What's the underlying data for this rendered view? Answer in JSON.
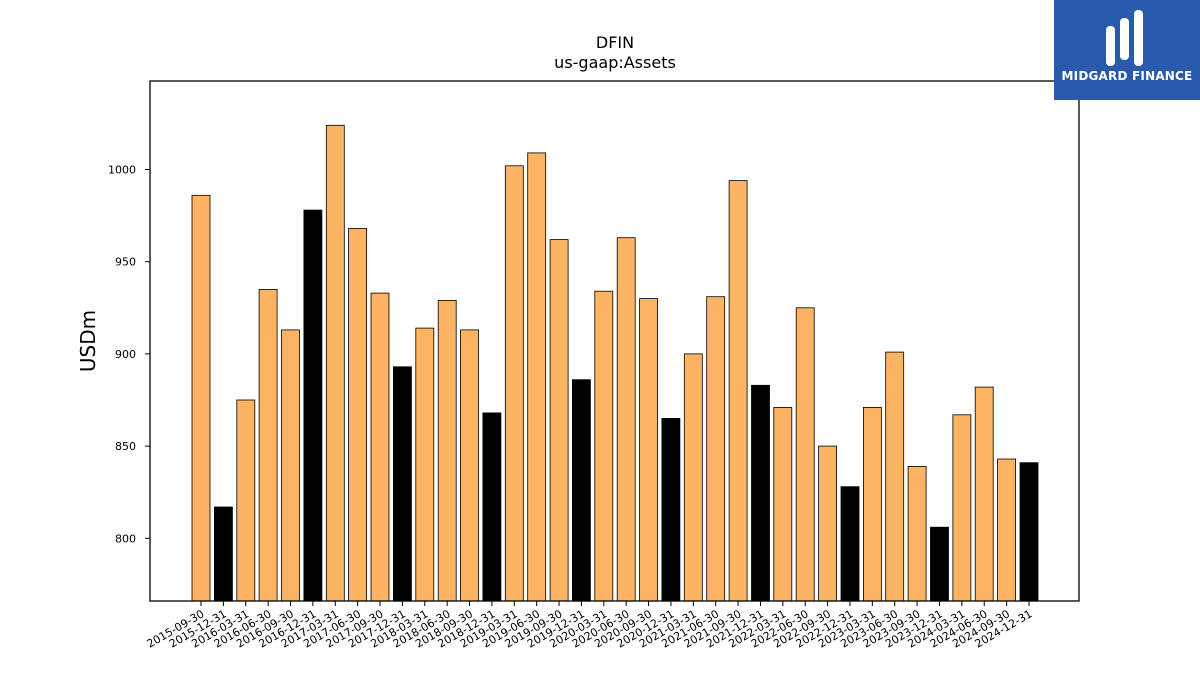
{
  "chart_data": {
    "type": "bar",
    "title": "DFIN",
    "subtitle": "us-gaap:Assets",
    "xlabel": "",
    "ylabel": "USDm",
    "ylim": [
      766,
      1048
    ],
    "yticks": [
      800,
      850,
      900,
      950,
      1000
    ],
    "grid": false,
    "categories": [
      "2015-09-30",
      "2015-12-31",
      "2016-03-31",
      "2016-06-30",
      "2016-09-30",
      "2016-12-31",
      "2017-03-31",
      "2017-06-30",
      "2017-09-30",
      "2017-12-31",
      "2018-03-31",
      "2018-06-30",
      "2018-09-30",
      "2018-12-31",
      "2019-03-31",
      "2019-06-30",
      "2019-09-30",
      "2019-12-31",
      "2020-03-31",
      "2020-06-30",
      "2020-09-30",
      "2020-12-31",
      "2021-03-31",
      "2021-06-30",
      "2021-09-30",
      "2021-12-31",
      "2022-03-31",
      "2022-06-30",
      "2022-09-30",
      "2022-12-31",
      "2023-03-31",
      "2023-06-30",
      "2023-09-30",
      "2023-12-31",
      "2024-03-31",
      "2024-06-30",
      "2024-09-30",
      "2024-12-31"
    ],
    "values": [
      986,
      817,
      875,
      935,
      913,
      978,
      1024,
      968,
      933,
      893,
      914,
      929,
      913,
      868,
      1002,
      1009,
      962,
      886,
      934,
      963,
      930,
      865,
      900,
      931,
      994,
      883,
      871,
      925,
      850,
      828,
      871,
      901,
      839,
      806,
      867,
      882,
      843,
      841
    ],
    "highlight": [
      false,
      true,
      false,
      false,
      false,
      true,
      false,
      false,
      false,
      true,
      false,
      false,
      false,
      true,
      false,
      false,
      false,
      true,
      false,
      false,
      false,
      true,
      false,
      false,
      false,
      true,
      false,
      false,
      false,
      true,
      false,
      false,
      false,
      true,
      false,
      false,
      false,
      true
    ],
    "colors": {
      "bar": "#FDB462",
      "highlight": "#000000",
      "edge": "#000000"
    }
  },
  "logo": {
    "text": "MIDGARD FINANCE",
    "background": "#2A5AAE"
  }
}
